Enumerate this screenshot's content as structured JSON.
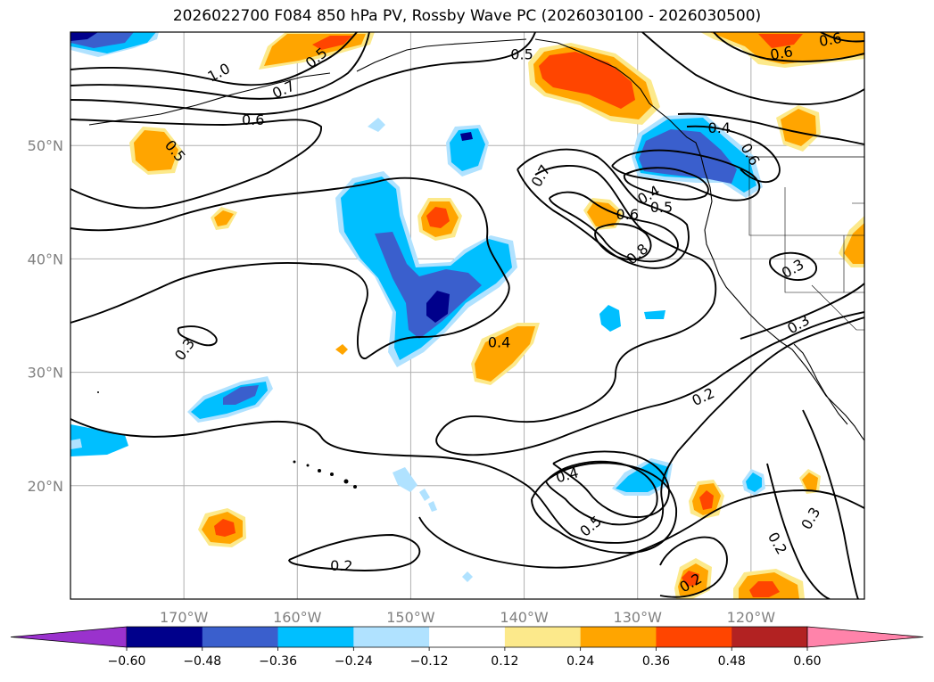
{
  "title": "2026022700 F084 850 hPa PV, Rossby Wave PC (2026030100 - 2026030500)",
  "map": {
    "projection": "PlateCarree",
    "lon_range": [
      -180,
      -110
    ],
    "lat_range": [
      10,
      60
    ],
    "lat_ticks": [
      {
        "value": 50,
        "label": "50°N"
      },
      {
        "value": 40,
        "label": "40°N"
      },
      {
        "value": 30,
        "label": "30°N"
      },
      {
        "value": 20,
        "label": "20°N"
      }
    ],
    "lon_ticks": [
      {
        "value": -170,
        "label": "170°W"
      },
      {
        "value": -160,
        "label": "160°W"
      },
      {
        "value": -150,
        "label": "150°W"
      },
      {
        "value": -140,
        "label": "140°W"
      },
      {
        "value": -130,
        "label": "130°W"
      },
      {
        "value": -120,
        "label": "120°W"
      }
    ],
    "contour_labels": [
      {
        "text": "1.0",
        "lon": -166.9,
        "lat": 56.4,
        "angle": -28
      },
      {
        "text": "0.7",
        "lon": -161.2,
        "lat": 54.9,
        "angle": -25
      },
      {
        "text": "0.6",
        "lon": -163.9,
        "lat": 52.2,
        "angle": 0
      },
      {
        "text": "0.5",
        "lon": -140.2,
        "lat": 58.0,
        "angle": 0
      },
      {
        "text": "0.5",
        "lon": -170.8,
        "lat": 49.5,
        "angle": 50
      },
      {
        "text": "0.7",
        "lon": -138.5,
        "lat": 47.3,
        "angle": -60
      },
      {
        "text": "0.6",
        "lon": -130.9,
        "lat": 43.9,
        "angle": 0
      },
      {
        "text": "0.5",
        "lon": -127.9,
        "lat": 44.5,
        "angle": 0
      },
      {
        "text": "0.4",
        "lon": -129.0,
        "lat": 45.6,
        "angle": -30
      },
      {
        "text": "0.4",
        "lon": -122.8,
        "lat": 51.5,
        "angle": 0
      },
      {
        "text": "0.6",
        "lon": -120.1,
        "lat": 49.2,
        "angle": 60
      },
      {
        "text": "0.8",
        "lon": -130.0,
        "lat": 40.4,
        "angle": -40
      },
      {
        "text": "0.3",
        "lon": -116.3,
        "lat": 39.1,
        "angle": -30
      },
      {
        "text": "0.3",
        "lon": -115.8,
        "lat": 34.2,
        "angle": -30
      },
      {
        "text": "0.3",
        "lon": -169.9,
        "lat": 32.0,
        "angle": -55
      },
      {
        "text": "0.4",
        "lon": -142.2,
        "lat": 32.6,
        "angle": 0
      },
      {
        "text": "0.2",
        "lon": -124.2,
        "lat": 27.8,
        "angle": -25
      },
      {
        "text": "0.4",
        "lon": -136.2,
        "lat": 20.9,
        "angle": -15
      },
      {
        "text": "0.5",
        "lon": -134.1,
        "lat": 16.4,
        "angle": -40
      },
      {
        "text": "0.2",
        "lon": -156.1,
        "lat": 12.9,
        "angle": 0
      },
      {
        "text": "0.2",
        "lon": -117.7,
        "lat": 14.9,
        "angle": 60
      },
      {
        "text": "0.3",
        "lon": -114.7,
        "lat": 17.1,
        "angle": -60
      },
      {
        "text": "0.2",
        "lon": -125.3,
        "lat": 11.4,
        "angle": -30
      },
      {
        "text": "0.5",
        "lon": -158.3,
        "lat": 57.7,
        "angle": -40
      },
      {
        "text": "0.6",
        "lon": -117.3,
        "lat": 58.1,
        "angle": -10
      },
      {
        "text": "0.6",
        "lon": -113.0,
        "lat": 59.3,
        "angle": -10
      }
    ]
  },
  "colorbar": {
    "levels": [
      -0.6,
      -0.48,
      -0.36,
      -0.24,
      -0.12,
      0.12,
      0.24,
      0.36,
      0.48,
      0.6
    ],
    "tick_labels": [
      "−0.60",
      "−0.48",
      "−0.36",
      "−0.24",
      "−0.12",
      "0.12",
      "0.24",
      "0.36",
      "0.48",
      "0.60"
    ],
    "colors": [
      "#9a32cd",
      "#00008b",
      "#3a5fcd",
      "#00bfff",
      "#b0e2ff",
      "#ffffff",
      "#fce98b",
      "#ffa500",
      "#ff4500",
      "#b22222",
      "#ff83aa"
    ]
  }
}
